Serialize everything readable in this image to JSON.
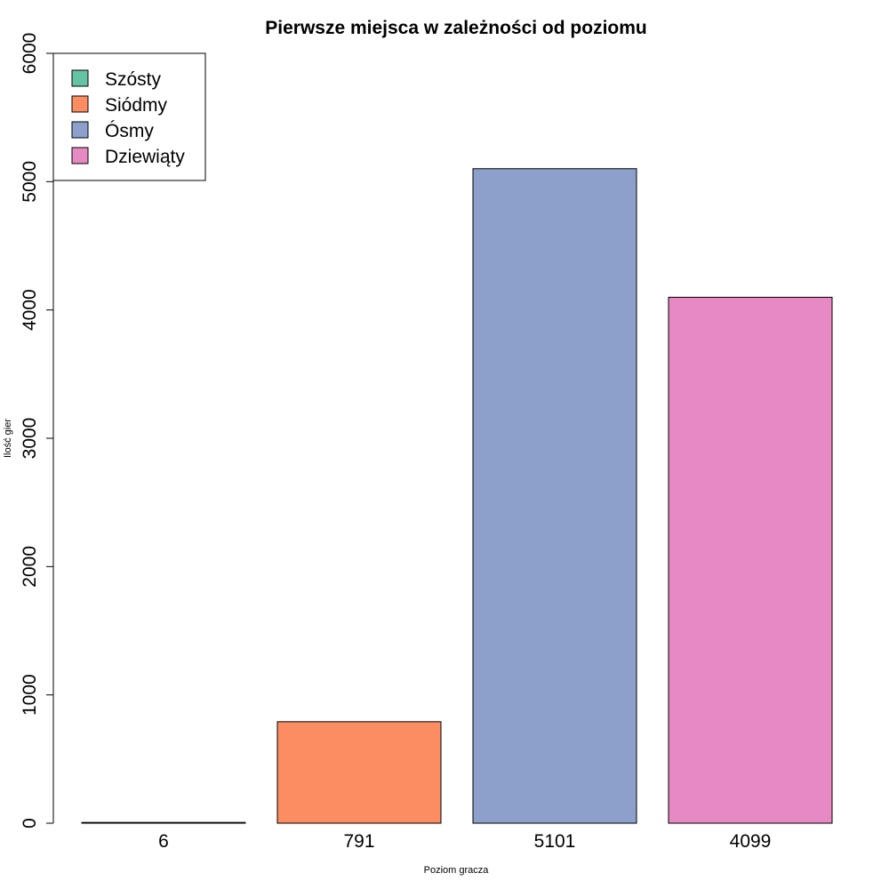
{
  "chart_data": {
    "type": "bar",
    "title": "Pierwsze miejsca w zależności od poziomu",
    "xlabel": "Poziom gracza",
    "ylabel": "Ilość gier",
    "categories": [
      "6",
      "791",
      "5101",
      "4099"
    ],
    "values": [
      6,
      791,
      5101,
      4099
    ],
    "colors": [
      "#66c2a5",
      "#fc8d62",
      "#8da0cb",
      "#e78ac3"
    ],
    "ylim": [
      0,
      6000
    ],
    "yticks": [
      "0",
      "1000",
      "2000",
      "3000",
      "4000",
      "5000",
      "6000"
    ],
    "ytick_values": [
      0,
      1000,
      2000,
      3000,
      4000,
      5000,
      6000
    ],
    "grid": false,
    "legend": {
      "placement": "top-left",
      "entries": [
        "Szósty",
        "Siódmy",
        "Ósmy",
        "Dziewiąty"
      ]
    }
  }
}
